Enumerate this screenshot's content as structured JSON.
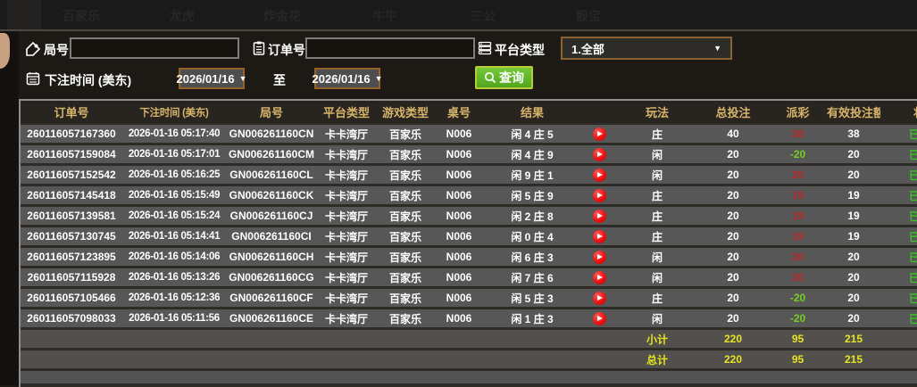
{
  "topbar": {
    "menu": [
      "百家乐",
      "龙虎",
      "炸金花",
      "牛牛",
      "三公",
      "骰宝"
    ]
  },
  "filters": {
    "round_label": "局号",
    "round_value": "",
    "order_label": "订单号",
    "order_value": "",
    "platform_label": "平台类型",
    "platform_value": "1.全部",
    "bet_time_label": "下注时间 (美东)",
    "date_from": "2026/01/16",
    "to_label": "至",
    "date_to": "2026/01/16",
    "query_label": "查询"
  },
  "table": {
    "headers": [
      "订单号",
      "下注时间 (美东)",
      "局号",
      "平台类型",
      "游戏类型",
      "桌号",
      "结果",
      "",
      "玩法",
      "总投注",
      "派彩",
      "有效投注额",
      "状态"
    ],
    "rows": [
      {
        "order": "260116057167360",
        "time": "2026-01-16 05:17:40",
        "round": "GN006261160CN",
        "platform": "卡卡湾厅",
        "game": "百家乐",
        "table_no": "N006",
        "result": "闲 4 庄 5",
        "bet_type": "庄",
        "total_bet": "40",
        "payout": "38",
        "valid_bet": "38",
        "status": "已派彩"
      },
      {
        "order": "260116057159084",
        "time": "2026-01-16 05:17:01",
        "round": "GN006261160CM",
        "platform": "卡卡湾厅",
        "game": "百家乐",
        "table_no": "N006",
        "result": "闲 4 庄 9",
        "bet_type": "闲",
        "total_bet": "20",
        "payout": "-20",
        "valid_bet": "20",
        "status": "已派彩"
      },
      {
        "order": "260116057152542",
        "time": "2026-01-16 05:16:25",
        "round": "GN006261160CL",
        "platform": "卡卡湾厅",
        "game": "百家乐",
        "table_no": "N006",
        "result": "闲 9 庄 1",
        "bet_type": "闲",
        "total_bet": "20",
        "payout": "20",
        "valid_bet": "20",
        "status": "已派彩"
      },
      {
        "order": "260116057145418",
        "time": "2026-01-16 05:15:49",
        "round": "GN006261160CK",
        "platform": "卡卡湾厅",
        "game": "百家乐",
        "table_no": "N006",
        "result": "闲 5 庄 9",
        "bet_type": "庄",
        "total_bet": "20",
        "payout": "19",
        "valid_bet": "19",
        "status": "已派彩"
      },
      {
        "order": "260116057139581",
        "time": "2026-01-16 05:15:24",
        "round": "GN006261160CJ",
        "platform": "卡卡湾厅",
        "game": "百家乐",
        "table_no": "N006",
        "result": "闲 2 庄 8",
        "bet_type": "庄",
        "total_bet": "20",
        "payout": "19",
        "valid_bet": "19",
        "status": "已派彩"
      },
      {
        "order": "260116057130745",
        "time": "2026-01-16 05:14:41",
        "round": "GN006261160CI",
        "platform": "卡卡湾厅",
        "game": "百家乐",
        "table_no": "N006",
        "result": "闲 0 庄 4",
        "bet_type": "庄",
        "total_bet": "20",
        "payout": "19",
        "valid_bet": "19",
        "status": "已派彩"
      },
      {
        "order": "260116057123895",
        "time": "2026-01-16 05:14:06",
        "round": "GN006261160CH",
        "platform": "卡卡湾厅",
        "game": "百家乐",
        "table_no": "N006",
        "result": "闲 6 庄 3",
        "bet_type": "闲",
        "total_bet": "20",
        "payout": "20",
        "valid_bet": "20",
        "status": "已派彩"
      },
      {
        "order": "260116057115928",
        "time": "2026-01-16 05:13:26",
        "round": "GN006261160CG",
        "platform": "卡卡湾厅",
        "game": "百家乐",
        "table_no": "N006",
        "result": "闲 7 庄 6",
        "bet_type": "闲",
        "total_bet": "20",
        "payout": "20",
        "valid_bet": "20",
        "status": "已派彩"
      },
      {
        "order": "260116057105466",
        "time": "2026-01-16 05:12:36",
        "round": "GN006261160CF",
        "platform": "卡卡湾厅",
        "game": "百家乐",
        "table_no": "N006",
        "result": "闲 5 庄 3",
        "bet_type": "庄",
        "total_bet": "20",
        "payout": "-20",
        "valid_bet": "20",
        "status": "已派彩"
      },
      {
        "order": "260116057098033",
        "time": "2026-01-16 05:11:56",
        "round": "GN006261160CE",
        "platform": "卡卡湾厅",
        "game": "百家乐",
        "table_no": "N006",
        "result": "闲 1 庄 3",
        "bet_type": "闲",
        "total_bet": "20",
        "payout": "-20",
        "valid_bet": "20",
        "status": "已派彩"
      }
    ],
    "subtotal": {
      "label": "小计",
      "total_bet": "220",
      "payout": "95",
      "valid_bet": "215"
    },
    "total": {
      "label": "总计",
      "total_bet": "220",
      "payout": "95",
      "valid_bet": "215"
    }
  },
  "colors": {
    "header_gold": "#d7b469",
    "payout_win_red": "#b52a2a",
    "payout_loss_green": "#77cc22",
    "status_green": "#3ec327",
    "summary_yellow": "#e6e321",
    "query_button_green": "#5fb52a",
    "date_border_brown": "#95622c"
  }
}
